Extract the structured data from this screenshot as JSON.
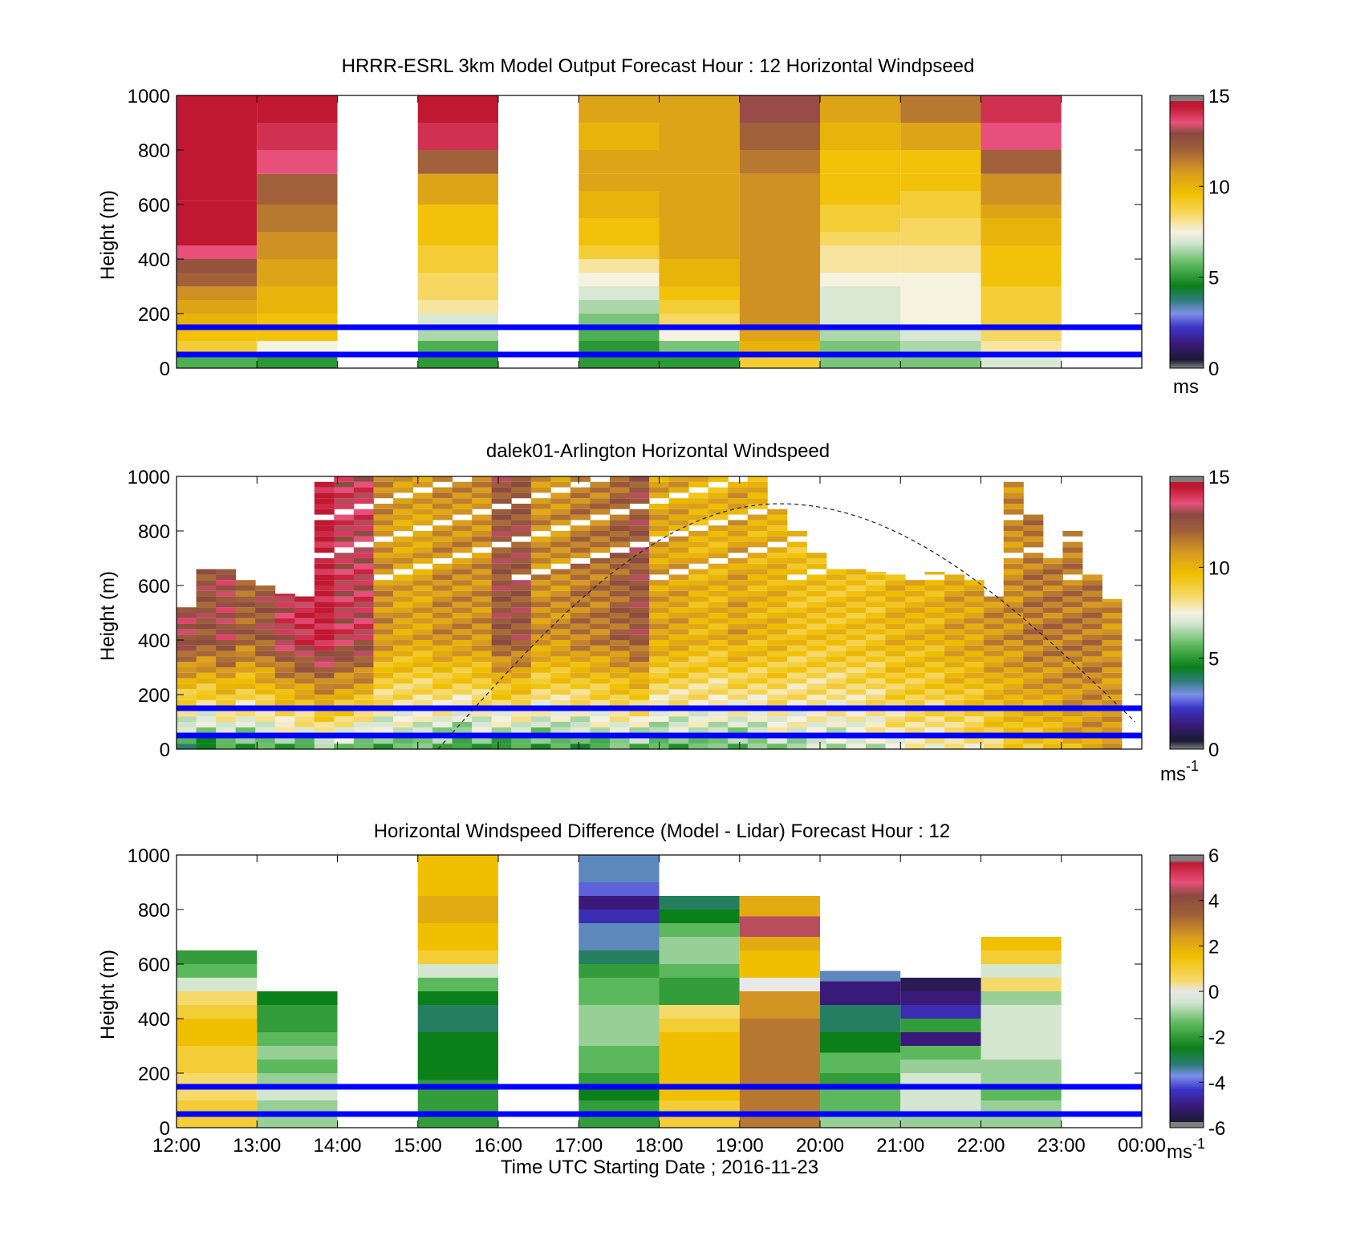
{
  "figure": {
    "xlabel": "Time UTC  Starting Date ; 2016-11-23",
    "x_tick_labels": [
      "12:00",
      "13:00",
      "14:00",
      "15:00",
      "16:00",
      "17:00",
      "18:00",
      "19:00",
      "20:00",
      "21:00",
      "22:00",
      "23:00",
      "00:00"
    ],
    "reference_lines_height_m": [
      150,
      50
    ],
    "reference_line_color": "#0000ff"
  },
  "chart_data": [
    {
      "type": "heatmap",
      "title": "HRRR-ESRL 3km Model Output   Forecast Hour : 12 Horizontal Windpseed",
      "ylabel": "Height (m)",
      "ylim": [
        0,
        1000
      ],
      "xlim": [
        "12:00",
        "00:00"
      ],
      "y_ticks": [
        0,
        200,
        400,
        600,
        800,
        1000
      ],
      "colorbar": {
        "ticks": [
          0,
          5,
          10,
          15
        ],
        "unit": "ms",
        "range": [
          0,
          15
        ]
      },
      "hourly_profiles_ms": [
        {
          "hour": "12:00",
          "heights_m": [
            25,
            75,
            125,
            175,
            225,
            275,
            325,
            375,
            425,
            475,
            750
          ],
          "values": [
            5.5,
            9,
            9.5,
            10,
            10.5,
            11,
            12,
            12.5,
            13.5,
            14.5,
            15
          ]
        },
        {
          "hour": "13:00",
          "heights_m": [
            25,
            75,
            125,
            175,
            225,
            275,
            325,
            375,
            425,
            475,
            525,
            575,
            625,
            675,
            750,
            850,
            950
          ],
          "values": [
            5,
            7.5,
            9.5,
            9.5,
            10,
            10,
            10.5,
            10.5,
            11,
            11,
            11.5,
            11.5,
            12,
            12,
            13.5,
            14,
            14.5
          ]
        },
        {
          "hour": "15:00",
          "heights_m": [
            25,
            75,
            125,
            175,
            225,
            275,
            325,
            375,
            425,
            475,
            525,
            575,
            625,
            675,
            750,
            850,
            950
          ],
          "values": [
            5,
            5.5,
            6.5,
            7,
            8,
            8.5,
            8.5,
            9,
            9,
            9.5,
            9.5,
            9.5,
            10.5,
            10.5,
            12,
            14,
            14.5
          ]
        },
        {
          "hour": "17:00",
          "heights_m": [
            25,
            75,
            125,
            175,
            225,
            275,
            325,
            375,
            425,
            475,
            525,
            575,
            625,
            675,
            750,
            850,
            950
          ],
          "values": [
            5,
            5,
            5.5,
            6,
            6.5,
            7,
            7.5,
            8,
            9,
            9.5,
            9.5,
            10,
            10,
            10.5,
            10.5,
            10,
            10.5
          ]
        },
        {
          "hour": "18:00",
          "heights_m": [
            25,
            75,
            125,
            175,
            225,
            275,
            325,
            375,
            425,
            475,
            525,
            575,
            625,
            675,
            750,
            850,
            950
          ],
          "values": [
            5,
            6,
            7.5,
            8.5,
            9,
            9.5,
            10,
            10,
            10.5,
            10.5,
            10.5,
            10.5,
            10.5,
            10.5,
            10.5,
            10.5,
            10.5
          ]
        },
        {
          "hour": "19:00",
          "heights_m": [
            25,
            75,
            125,
            175,
            225,
            275,
            325,
            375,
            425,
            475,
            525,
            575,
            625,
            675,
            750,
            850,
            950
          ],
          "values": [
            9,
            10,
            10.5,
            11,
            11,
            11,
            11,
            11,
            11,
            11,
            11,
            11,
            11,
            11,
            11.5,
            12,
            13
          ]
        },
        {
          "hour": "20:00",
          "heights_m": [
            25,
            75,
            125,
            175,
            225,
            275,
            325,
            375,
            425,
            475,
            525,
            575,
            625,
            675,
            750,
            850,
            950
          ],
          "values": [
            6,
            6,
            6.5,
            7,
            7,
            7,
            7.5,
            8,
            8,
            8.5,
            9,
            9,
            9.5,
            9.5,
            9.5,
            10,
            10.5
          ]
        },
        {
          "hour": "21:00",
          "heights_m": [
            25,
            75,
            125,
            175,
            225,
            275,
            325,
            375,
            425,
            475,
            525,
            575,
            625,
            675,
            750,
            850,
            950
          ],
          "values": [
            6,
            6.5,
            7,
            7.5,
            7.5,
            7.5,
            7.5,
            8,
            8,
            8.5,
            8.5,
            9,
            9,
            9.5,
            9.5,
            10.5,
            11.5
          ]
        },
        {
          "hour": "22:00",
          "heights_m": [
            25,
            75,
            125,
            175,
            225,
            275,
            325,
            375,
            425,
            475,
            525,
            575,
            625,
            675,
            750,
            850,
            950
          ],
          "values": [
            7,
            8,
            8.5,
            9,
            9,
            9,
            9.5,
            9.5,
            9.5,
            10,
            10,
            10.5,
            11,
            11,
            12,
            13.5,
            14
          ]
        }
      ]
    },
    {
      "type": "heatmap",
      "title": "dalek01-Arlington  Horizontal Windspeed",
      "ylabel": "Height (m)",
      "ylim": [
        0,
        1000
      ],
      "xlim": [
        "12:00",
        "00:00"
      ],
      "y_ticks": [
        0,
        200,
        400,
        600,
        800,
        1000
      ],
      "colorbar": {
        "ticks": [
          0,
          5,
          10,
          15
        ],
        "unit": "ms-1",
        "range": [
          0,
          15
        ]
      },
      "annotation_curve": {
        "style": "dashed",
        "x_start": "15:15",
        "x_peak": "19:30",
        "x_end": "23:55",
        "peak_height_m": 900,
        "end_height_m": 100
      },
      "column_top_m": [
        520,
        660,
        660,
        630,
        600,
        570,
        560,
        1000,
        1000,
        1000,
        1000,
        1000,
        1000,
        1000,
        1000,
        1000,
        1000,
        1000,
        1000,
        1000,
        1000,
        1000,
        1000,
        1000,
        1000,
        1000,
        1000,
        1000,
        1000,
        1000,
        880,
        800,
        720,
        680,
        660,
        650,
        640,
        620,
        650,
        660,
        620,
        560,
        1000,
        880,
        700,
        800,
        660,
        550
      ],
      "low_level_mean_ms": [
        4.5,
        4.5,
        5,
        5,
        5.5,
        5.5,
        5.5,
        6,
        6,
        5.5,
        5.5,
        6,
        5.5,
        5.5,
        5,
        5.5,
        5,
        5,
        5,
        5.5,
        5,
        5.5,
        5.5,
        5.5,
        5.5,
        5.5,
        6,
        5.5,
        5.5,
        6,
        6.5,
        6.5,
        6.5,
        6.5,
        7,
        7,
        7.5,
        7.5,
        7.5,
        8,
        8,
        8.5,
        9,
        9,
        9.5,
        10,
        10.5,
        10.5
      ],
      "upper_level_mean_ms": [
        13,
        12.5,
        13,
        12,
        12.5,
        13.5,
        14,
        14.5,
        13.5,
        13.5,
        11,
        10.5,
        10.5,
        11,
        11,
        11,
        12.5,
        12.5,
        11,
        11,
        11.5,
        11.5,
        12,
        12.5,
        10.5,
        10.5,
        10,
        10,
        10.5,
        10,
        10,
        9.5,
        9.5,
        9.5,
        9.5,
        9.5,
        10,
        10,
        10,
        10.5,
        10.5,
        11,
        11,
        11.5,
        11.5,
        11.5,
        11.5,
        11
      ]
    },
    {
      "type": "heatmap",
      "title": "Horizontal Windspeed Difference (Model - Lidar) Forecast Hour : 12",
      "ylabel": "Height (m)",
      "ylim": [
        0,
        1000
      ],
      "xlim": [
        "12:00",
        "00:00"
      ],
      "y_ticks": [
        0,
        200,
        400,
        600,
        800,
        1000
      ],
      "colorbar": {
        "ticks": [
          -6,
          -4,
          -2,
          0,
          2,
          4,
          6
        ],
        "unit": "ms-1",
        "range": [
          -6,
          6
        ]
      },
      "hourly_profiles_ms": [
        {
          "hour": "12:00",
          "heights_m": [
            25,
            75,
            125,
            175,
            225,
            275,
            325,
            375,
            425,
            475,
            525,
            575,
            625
          ],
          "values": [
            1,
            1,
            0.5,
            0.5,
            1,
            1,
            1.5,
            1.5,
            1,
            0.5,
            -0.5,
            -1.5,
            -2
          ]
        },
        {
          "hour": "13:00",
          "heights_m": [
            25,
            75,
            125,
            175,
            225,
            275,
            325,
            375,
            425,
            475
          ],
          "values": [
            -1,
            -1,
            -0.5,
            -1,
            -1.5,
            -1,
            -1.5,
            -2,
            -2,
            -2.5
          ]
        },
        {
          "hour": "15:00",
          "heights_m": [
            25,
            325,
            375,
            425,
            475,
            525,
            575,
            625,
            675,
            725,
            775,
            825,
            875,
            925,
            975
          ],
          "values": [
            -2,
            -2.5,
            -3,
            -3,
            -2.5,
            -1.5,
            -0.5,
            1,
            1.5,
            1.5,
            2,
            2,
            1.5,
            1.5,
            1.5
          ]
        },
        {
          "hour": "17:00",
          "heights_m": [
            25,
            75,
            125,
            175,
            225,
            275,
            325,
            375,
            425,
            475,
            525,
            575,
            625,
            675,
            725,
            775,
            825,
            875,
            925,
            975
          ],
          "values": [
            -2,
            -2,
            -2.5,
            -2,
            -1.5,
            -1.5,
            -1,
            -1,
            -1,
            -1.5,
            -1.5,
            -2,
            -3,
            -3.5,
            -3.5,
            -4.5,
            -5,
            -4,
            -3.5,
            -3.5
          ]
        },
        {
          "hour": "18:00",
          "heights_m": [
            25,
            75,
            125,
            175,
            225,
            275,
            325,
            375,
            425,
            475,
            525,
            575,
            625,
            675,
            725,
            775,
            825
          ],
          "values": [
            1,
            1,
            1.5,
            1.5,
            1.5,
            1.5,
            1.5,
            1,
            0.5,
            -2,
            -2,
            -1.5,
            -1,
            -1,
            -1.5,
            -2.5,
            -3
          ]
        },
        {
          "hour": "19:00",
          "heights_m": [
            25,
            75,
            125,
            175,
            225,
            275,
            325,
            375,
            425,
            475,
            525,
            575,
            625,
            675,
            725,
            825
          ],
          "values": [
            3,
            3,
            3,
            3,
            3,
            3,
            3,
            3,
            2.5,
            2.5,
            0,
            1.5,
            1.5,
            2,
            4.5,
            2
          ]
        },
        {
          "hour": "20:00",
          "heights_m": [
            25,
            75,
            125,
            175,
            225,
            325,
            375,
            525,
            550
          ],
          "values": [
            -1,
            -1.5,
            -1.5,
            -2,
            -1.5,
            -2.5,
            -3,
            -5,
            -3.5
          ]
        },
        {
          "hour": "21:00",
          "heights_m": [
            25,
            75,
            125,
            175,
            225,
            275,
            325,
            375,
            425,
            475,
            525
          ],
          "values": [
            -1,
            -0.5,
            -0.5,
            -0.5,
            -1,
            -1.5,
            -5,
            -2,
            -4.5,
            -5,
            -5.5
          ]
        },
        {
          "hour": "22:00",
          "heights_m": [
            25,
            75,
            125,
            175,
            325,
            375,
            425,
            475,
            525,
            575,
            625,
            675
          ],
          "values": [
            -1,
            -1,
            -1.5,
            -1,
            -0.5,
            -0.5,
            -0.5,
            -1,
            0.5,
            -0.5,
            1,
            1.5
          ]
        }
      ]
    }
  ]
}
